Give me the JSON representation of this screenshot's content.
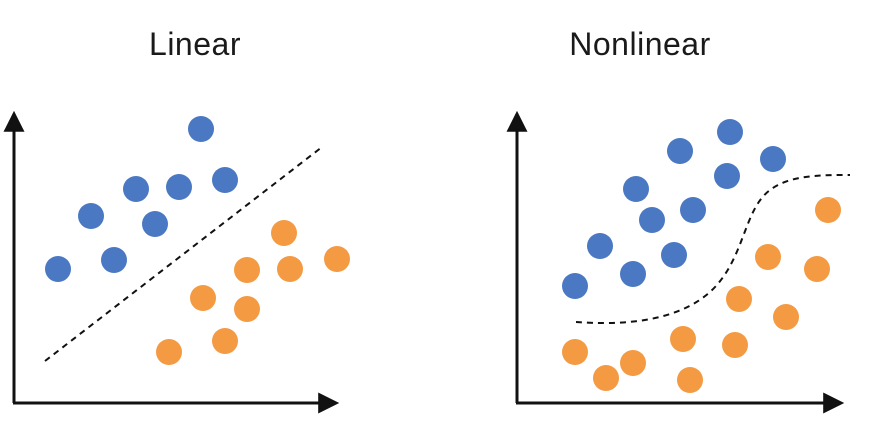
{
  "panels": [
    {
      "title": "Linear",
      "boundary": "linear"
    },
    {
      "title": "Nonlinear",
      "boundary": "nonlinear"
    }
  ],
  "colors": {
    "class_a": "#4a78c2",
    "class_b": "#f39a43",
    "axis": "#111111",
    "boundary": "#111111"
  }
}
